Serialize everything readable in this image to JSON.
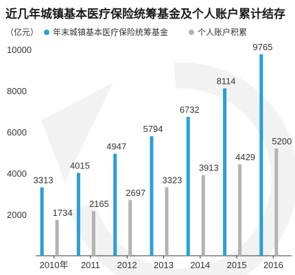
{
  "title": "近几年城镇基本医疗保险统筹基金及个人账户累计结存",
  "unit": "（亿元）",
  "colors": {
    "series_a": "#2a9fd6",
    "series_b": "#b3b3b3",
    "watermark": "#f2f2f2",
    "axis": "#333333"
  },
  "chart_data": {
    "type": "bar",
    "categories": [
      "2010年",
      "2011",
      "2012",
      "2013",
      "2014",
      "2015",
      "2016"
    ],
    "series": [
      {
        "name": "年末城镇基本医疗保险统筹基金",
        "values": [
          3313,
          4015,
          4947,
          5794,
          6732,
          8114,
          9765
        ]
      },
      {
        "name": "个人账户积累",
        "values": [
          1734,
          2165,
          2697,
          3323,
          3913,
          4429,
          5200
        ]
      }
    ],
    "yticks": [
      2000,
      4000,
      6000,
      8000,
      10000
    ],
    "ylim": [
      0,
      10400
    ],
    "grid": false,
    "legend_position": "top"
  }
}
